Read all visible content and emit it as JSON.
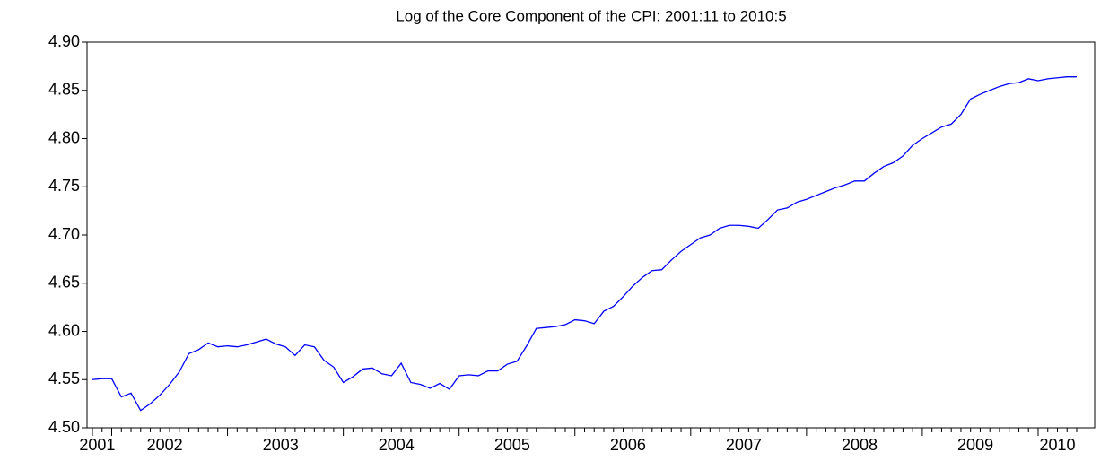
{
  "chart_data": {
    "type": "line",
    "title": "Log of the Core Component of the CPI: 2001:11 to 2010:5",
    "categories": [
      "2001",
      null,
      "2002",
      null,
      null,
      null,
      null,
      null,
      null,
      null,
      null,
      null,
      null,
      null,
      "2003",
      null,
      null,
      null,
      null,
      null,
      null,
      null,
      null,
      null,
      null,
      null,
      "2004",
      null,
      null,
      null,
      null,
      null,
      null,
      null,
      null,
      null,
      null,
      null,
      "2005",
      null,
      null,
      null,
      null,
      null,
      null,
      null,
      null,
      null,
      null,
      null,
      "2006",
      null,
      null,
      null,
      null,
      null,
      null,
      null,
      null,
      null,
      null,
      null,
      "2007",
      null,
      null,
      null,
      null,
      null,
      null,
      null,
      null,
      null,
      null,
      null,
      "2008",
      null,
      null,
      null,
      null,
      null,
      null,
      null,
      null,
      null,
      null,
      null,
      "2009",
      null,
      null,
      null,
      null,
      null,
      null,
      null,
      null,
      null,
      null,
      null,
      "2010",
      null,
      null,
      null,
      null
    ],
    "values": [
      4.55,
      4.551,
      4.551,
      4.532,
      4.536,
      4.518,
      4.525,
      4.534,
      4.545,
      4.558,
      4.577,
      4.581,
      4.588,
      4.584,
      4.585,
      4.584,
      4.586,
      4.589,
      4.592,
      4.587,
      4.584,
      4.575,
      4.586,
      4.584,
      4.57,
      4.563,
      4.547,
      4.553,
      4.561,
      4.562,
      4.556,
      4.554,
      4.567,
      4.547,
      4.545,
      4.541,
      4.546,
      4.54,
      4.554,
      4.555,
      4.554,
      4.559,
      4.559,
      4.566,
      4.569,
      4.585,
      4.603,
      4.604,
      4.605,
      4.607,
      4.612,
      4.611,
      4.608,
      4.621,
      4.626,
      4.636,
      4.647,
      4.656,
      4.663,
      4.664,
      4.674,
      4.683,
      4.69,
      4.697,
      4.7,
      4.707,
      4.71,
      4.71,
      4.709,
      4.707,
      4.716,
      4.726,
      4.728,
      4.734,
      4.737,
      4.741,
      4.745,
      4.749,
      4.752,
      4.756,
      4.756,
      4.764,
      4.771,
      4.775,
      4.782,
      4.793,
      4.8,
      4.806,
      4.812,
      4.815,
      4.825,
      4.841,
      4.846,
      4.85,
      4.854,
      4.857,
      4.858,
      4.862,
      4.86,
      4.862,
      4.863,
      4.864,
      4.864
    ],
    "color": "#0000ff",
    "ylim": [
      4.5,
      4.9
    ],
    "yticks": [
      {
        "value": 4.5,
        "label": "4.50"
      },
      4.55,
      {
        "value": 4.6,
        "label": "4.60"
      },
      4.65,
      {
        "value": 4.7,
        "label": "4.70"
      },
      4.75,
      {
        "value": 4.8,
        "label": "4.80"
      },
      4.85,
      {
        "value": 4.9,
        "label": "4.90"
      }
    ],
    "grid": false
  }
}
